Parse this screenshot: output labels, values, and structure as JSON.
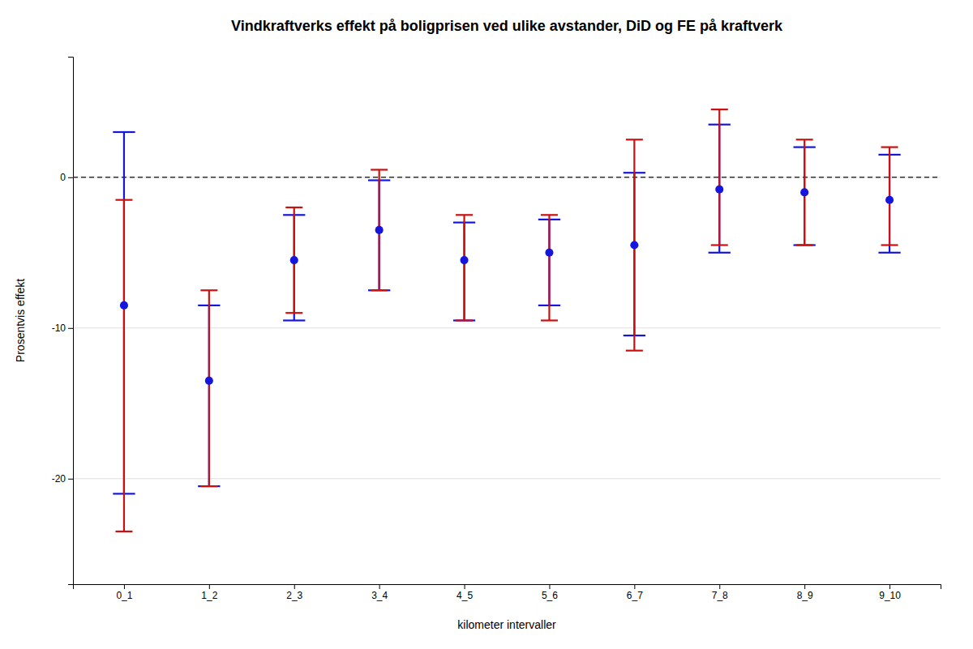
{
  "chart_data": {
    "type": "errorbar",
    "title": "Vindkraftverks effekt på boligprisen ved ulike avstander, DiD og FE på kraftverk",
    "xlabel": "kilometer intervaller",
    "ylabel": "Prosentvis effekt",
    "categories": [
      "0_1",
      "1_2",
      "2_3",
      "3_4",
      "4_5",
      "5_6",
      "6_7",
      "7_8",
      "8_9",
      "9_10"
    ],
    "values": [
      -8.5,
      -13.5,
      -5.5,
      -3.5,
      -5.5,
      -5.0,
      -4.5,
      -0.8,
      -1.0,
      -1.5
    ],
    "color": "#1515e0",
    "marker": "circle",
    "error_bars": [
      {
        "upper": [
          3.0,
          -8.5,
          -2.5,
          -0.2,
          -3.0,
          -2.8,
          0.3,
          3.5,
          2.0,
          1.5
        ],
        "lower": [
          -21.0,
          -20.5,
          -9.5,
          -7.5,
          -9.5,
          -8.5,
          -10.5,
          -5.0,
          -4.5,
          -5.0
        ],
        "color": "#1515e0"
      },
      {
        "upper": [
          -1.5,
          -7.5,
          -2.0,
          0.5,
          -2.5,
          -2.5,
          2.5,
          4.5,
          2.5,
          2.0
        ],
        "lower": [
          -23.5,
          -20.5,
          -9.0,
          -7.5,
          -9.5,
          -9.5,
          -11.5,
          -4.5,
          -4.5,
          -4.5
        ],
        "color": "#cc1010"
      }
    ],
    "reference_line": 0,
    "ylim": [
      -27,
      8
    ],
    "yticks": [
      -20,
      -10,
      0
    ],
    "grid": true
  }
}
